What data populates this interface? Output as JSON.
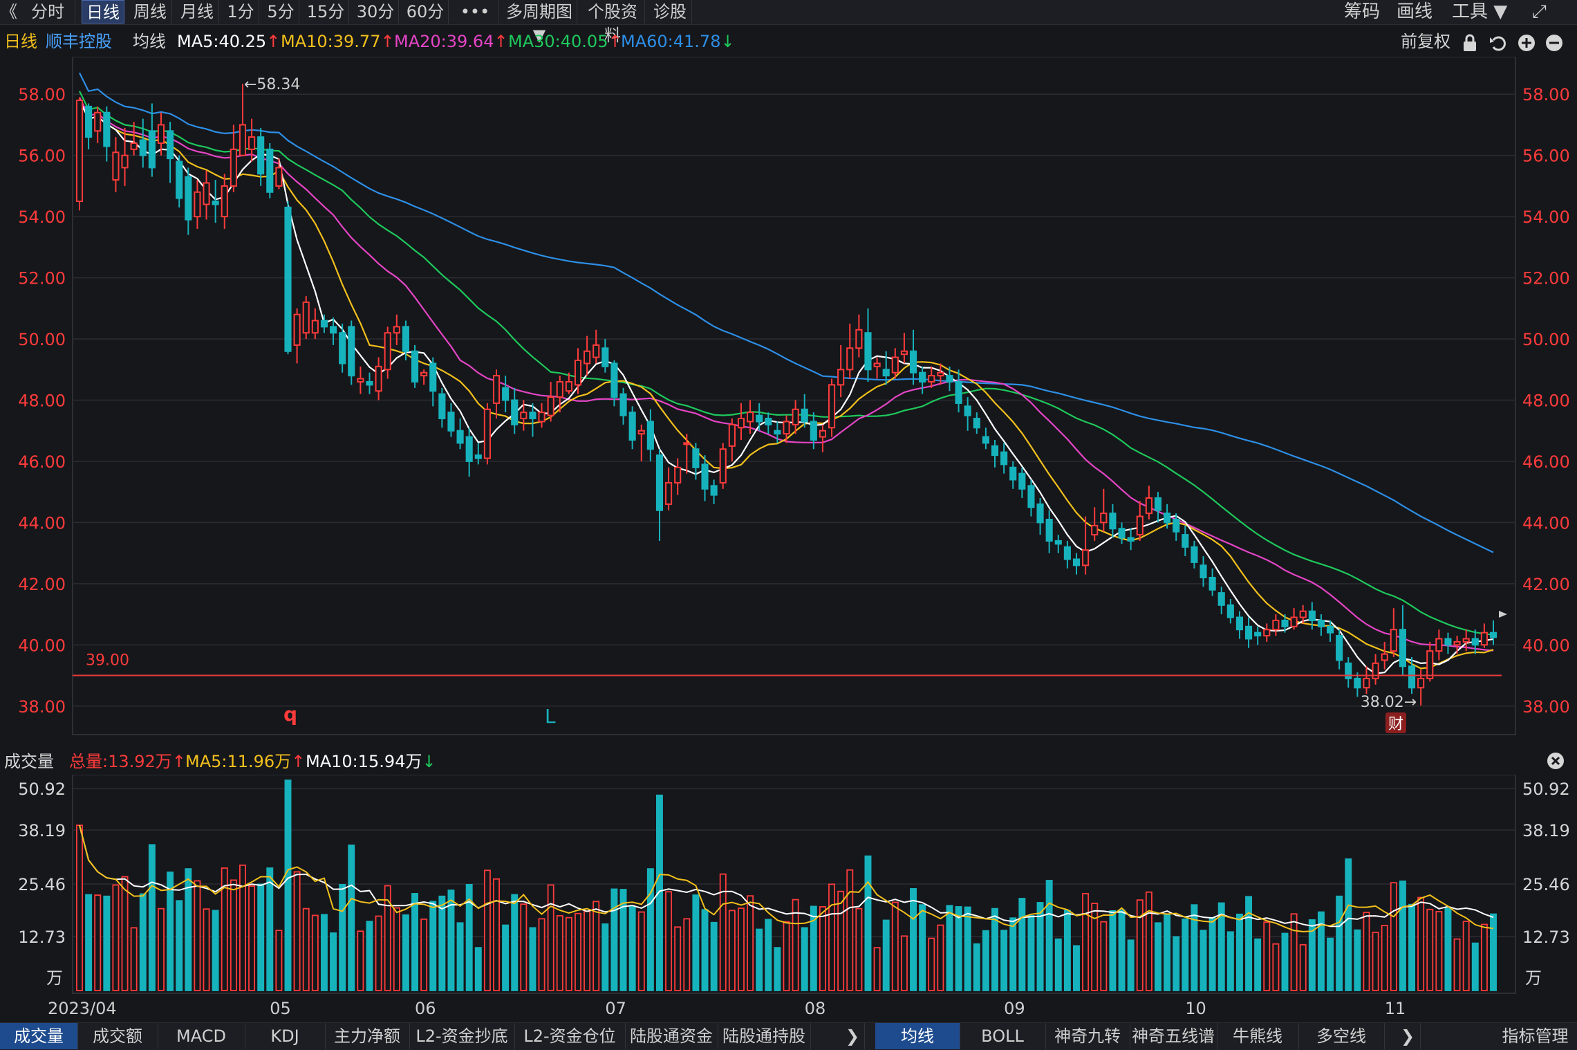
{
  "toolbar": {
    "back_glyph": "《",
    "periods": [
      "分时",
      "日线",
      "周线",
      "月线",
      "1分",
      "5分",
      "15分",
      "30分",
      "60分",
      "•••",
      "多周期图 ▼",
      "个股资料",
      "诊股"
    ],
    "active_period": "日线",
    "right_items": [
      "筹码",
      "画线",
      "工具 ▼",
      "⤢"
    ]
  },
  "ma_bar": {
    "period": "日线",
    "stock_name": "顺丰控股",
    "indicator": "均线",
    "ma5": "MA5:40.25",
    "ma10": "MA10:39.77",
    "ma20": "MA20:39.64",
    "ma30": "MA30:40.05",
    "ma60": "MA60:41.78",
    "ma5_arrow": "↑",
    "ma10_arrow": "↑",
    "ma20_arrow": "↑",
    "ma30_arrow": "↑",
    "ma60_arrow": "↓",
    "adjust": "前复权",
    "icons": [
      "lock-icon",
      "undo-icon",
      "zoom-in-icon",
      "zoom-out-icon"
    ]
  },
  "colors": {
    "up": "#ff3b3b",
    "down": "#16b3bd",
    "ma5": "#ffffff",
    "ma10": "#f2c01c",
    "ma20": "#e545c6",
    "ma30": "#1ec95c",
    "ma60": "#2d8fe6",
    "ref_line": "#e83a3a"
  },
  "price_axis": {
    "labels": [
      "58.00",
      "56.00",
      "54.00",
      "52.00",
      "50.00",
      "48.00",
      "46.00",
      "44.00",
      "42.00",
      "40.00",
      "38.00"
    ]
  },
  "volume_axis": {
    "labels": [
      "50.92",
      "38.19",
      "25.46",
      "12.73",
      "万"
    ]
  },
  "x_axis": {
    "labels": [
      "2023/04",
      "05",
      "06",
      "07",
      "08",
      "09",
      "10",
      "11"
    ]
  },
  "annotations": {
    "high_label": "←58.34",
    "low_label": "38.02→",
    "ref_value": "39.00",
    "marker_q": "q",
    "marker_l": "L",
    "event_badge": "财"
  },
  "volume_bar": {
    "title": "成交量",
    "total": "总量:13.92万",
    "total_arrow": "↑",
    "ma5": "MA5:11.96万",
    "ma5_arrow": "↑",
    "ma10": "MA10:15.94万",
    "ma10_arrow": "↓",
    "close_glyph": "✕"
  },
  "bottom_tabs": {
    "left": [
      "成交量",
      "成交额",
      "MACD",
      "KDJ",
      "主力净额",
      "L2-资金抄底",
      "L2-资金仓位",
      "陆股通资金",
      "陆股通持股"
    ],
    "left_active": "成交量",
    "arrow": "❯",
    "right": [
      "均线",
      "BOLL",
      "神奇九转",
      "神奇五线谱",
      "牛熊线",
      "多空线"
    ],
    "right_active": "均线",
    "arrow2": "❯",
    "last": "指标管理"
  },
  "chart_data": {
    "type": "candlestick",
    "ylim": [
      37.0,
      59.0
    ],
    "ref_line": 39.0,
    "points": [
      [
        "2023/04",
        54.5,
        57.8,
        57.9,
        54.2
      ],
      [
        null,
        57.6,
        56.6,
        57.7,
        56.2
      ],
      [
        null,
        56.8,
        57.4,
        57.6,
        56.4
      ],
      [
        null,
        57.4,
        56.3,
        57.6,
        55.8
      ],
      [
        null,
        55.2,
        56.1,
        56.6,
        54.8
      ],
      [
        null,
        55.6,
        56.0,
        56.9,
        55.0
      ],
      [
        null,
        56.2,
        56.4,
        57.1,
        56.0
      ],
      [
        null,
        56.5,
        56.0,
        57.2,
        55.6
      ],
      [
        null,
        56.8,
        55.6,
        57.7,
        55.3
      ],
      [
        null,
        56.4,
        57.0,
        57.4,
        56.0
      ],
      [
        null,
        56.8,
        55.9,
        57.1,
        55.1
      ],
      [
        null,
        55.8,
        54.6,
        56.0,
        54.3
      ],
      [
        null,
        55.3,
        53.9,
        55.6,
        53.4
      ],
      [
        null,
        54.0,
        54.8,
        55.2,
        53.6
      ],
      [
        null,
        54.4,
        55.1,
        55.5,
        53.9
      ],
      [
        null,
        54.5,
        54.4,
        55.2,
        53.8
      ],
      [
        null,
        54.0,
        55.0,
        55.4,
        53.6
      ],
      [
        null,
        55.0,
        56.2,
        57.0,
        54.8
      ],
      [
        null,
        56.0,
        57.0,
        58.34,
        56.0
      ],
      [
        null,
        56.2,
        56.6,
        57.2,
        55.8
      ],
      [
        null,
        56.6,
        55.4,
        56.9,
        55.0
      ],
      [
        "05",
        56.2,
        54.8,
        56.4,
        54.6
      ],
      [
        null,
        55.0,
        55.6,
        55.9,
        54.9
      ],
      [
        null,
        54.3,
        49.6,
        54.5,
        49.5
      ],
      [
        null,
        49.8,
        50.8,
        51.0,
        49.2
      ],
      [
        null,
        50.2,
        51.2,
        51.4,
        50.0
      ],
      [
        null,
        50.2,
        50.6,
        51.0,
        50.0
      ],
      [
        null,
        50.6,
        50.4,
        50.8,
        50.2
      ],
      [
        null,
        50.4,
        50.2,
        50.7,
        49.8
      ],
      [
        null,
        50.2,
        49.2,
        50.5,
        48.9
      ],
      [
        null,
        50.4,
        48.8,
        50.6,
        48.5
      ],
      [
        null,
        48.6,
        48.7,
        49.1,
        48.2
      ],
      [
        null,
        48.6,
        48.5,
        48.9,
        48.2
      ],
      [
        null,
        48.3,
        49.1,
        49.4,
        48.0
      ],
      [
        null,
        49.0,
        50.2,
        50.4,
        48.7
      ],
      [
        null,
        50.2,
        50.4,
        50.8,
        49.8
      ],
      [
        null,
        50.4,
        49.6,
        50.6,
        49.3
      ],
      [
        "06",
        49.6,
        48.6,
        49.8,
        48.4
      ],
      [
        null,
        48.8,
        48.9,
        49.0,
        48.5
      ],
      [
        null,
        49.2,
        48.3,
        49.4,
        47.8
      ],
      [
        null,
        48.2,
        47.4,
        48.4,
        47.1
      ],
      [
        null,
        47.6,
        47.0,
        47.9,
        46.8
      ],
      [
        null,
        47.0,
        46.6,
        47.4,
        46.4
      ],
      [
        null,
        46.8,
        46.0,
        47.1,
        45.5
      ],
      [
        null,
        46.2,
        46.1,
        46.6,
        45.9
      ],
      [
        null,
        46.1,
        47.7,
        47.9,
        45.9
      ],
      [
        null,
        47.9,
        48.8,
        49.0,
        47.4
      ],
      [
        null,
        48.4,
        48.0,
        48.8,
        47.6
      ],
      [
        null,
        48.0,
        47.2,
        48.4,
        46.9
      ],
      [
        null,
        47.4,
        47.6,
        48.0,
        47.0
      ],
      [
        null,
        47.6,
        47.4,
        47.9,
        46.8
      ],
      [
        null,
        47.3,
        47.6,
        47.9,
        47.1
      ],
      [
        null,
        47.5,
        48.1,
        48.6,
        47.3
      ],
      [
        null,
        48.1,
        48.6,
        48.8,
        47.6
      ],
      [
        null,
        48.3,
        48.6,
        48.9,
        48.2
      ],
      [
        null,
        48.5,
        49.3,
        49.7,
        48.2
      ],
      [
        null,
        49.2,
        49.6,
        50.1,
        48.8
      ],
      [
        null,
        49.4,
        49.8,
        50.3,
        49.2
      ],
      [
        "07",
        49.7,
        49.1,
        50.0,
        48.9
      ],
      [
        null,
        49.2,
        48.1,
        49.3,
        47.8
      ],
      [
        null,
        48.2,
        47.5,
        48.4,
        47.2
      ],
      [
        null,
        47.6,
        46.7,
        47.8,
        46.4
      ],
      [
        null,
        46.9,
        47.0,
        47.2,
        46.0
      ],
      [
        null,
        47.3,
        46.4,
        47.7,
        46.0
      ],
      [
        null,
        46.2,
        44.4,
        46.4,
        43.4
      ],
      [
        null,
        44.6,
        45.3,
        45.8,
        44.4
      ],
      [
        null,
        45.3,
        45.8,
        46.1,
        44.9
      ],
      [
        null,
        46.6,
        46.6,
        46.9,
        45.6
      ],
      [
        null,
        46.4,
        45.8,
        46.6,
        45.4
      ],
      [
        null,
        45.9,
        45.1,
        46.2,
        44.7
      ],
      [
        null,
        45.2,
        44.9,
        45.4,
        44.6
      ],
      [
        null,
        45.3,
        46.4,
        46.6,
        45.1
      ],
      [
        null,
        46.5,
        47.2,
        47.4,
        46.0
      ],
      [
        null,
        47.1,
        47.4,
        47.9,
        46.7
      ],
      [
        null,
        47.3,
        47.6,
        48.0,
        46.9
      ],
      [
        null,
        47.5,
        47.3,
        47.9,
        47.0
      ],
      [
        null,
        47.4,
        47.2,
        47.6,
        46.9
      ],
      [
        null,
        47.0,
        46.9,
        47.3,
        46.6
      ],
      [
        null,
        46.9,
        47.3,
        47.5,
        46.6
      ],
      [
        null,
        47.2,
        47.7,
        48.0,
        46.9
      ],
      [
        "08",
        47.7,
        47.3,
        48.2,
        47.1
      ],
      [
        null,
        47.3,
        46.7,
        47.6,
        46.4
      ],
      [
        null,
        46.8,
        47.0,
        47.2,
        46.3
      ],
      [
        null,
        47.1,
        48.5,
        48.7,
        46.8
      ],
      [
        null,
        48.5,
        49.0,
        49.8,
        48.1
      ],
      [
        null,
        49.0,
        49.7,
        50.5,
        48.7
      ],
      [
        null,
        49.7,
        50.3,
        50.8,
        49.4
      ],
      [
        null,
        50.2,
        49.0,
        51.0,
        48.6
      ],
      [
        null,
        49.1,
        49.2,
        49.4,
        48.7
      ],
      [
        null,
        49.0,
        48.8,
        49.6,
        48.5
      ],
      [
        null,
        48.9,
        49.4,
        49.7,
        48.7
      ],
      [
        null,
        49.5,
        49.6,
        50.2,
        49.2
      ],
      [
        null,
        49.6,
        48.9,
        50.3,
        48.5
      ],
      [
        null,
        48.9,
        48.6,
        49.1,
        48.2
      ],
      [
        null,
        48.6,
        48.8,
        49.1,
        48.4
      ],
      [
        null,
        48.8,
        48.9,
        49.2,
        48.5
      ],
      [
        null,
        48.8,
        48.6,
        49.1,
        48.3
      ],
      [
        null,
        48.6,
        47.9,
        49.0,
        47.6
      ],
      [
        null,
        47.8,
        47.5,
        48.1,
        47.0
      ],
      [
        null,
        47.4,
        47.1,
        47.6,
        46.9
      ],
      [
        null,
        46.8,
        46.6,
        47.1,
        46.4
      ],
      [
        null,
        46.5,
        46.2,
        46.7,
        45.8
      ],
      [
        "09",
        46.3,
        45.9,
        46.6,
        45.6
      ],
      [
        null,
        45.8,
        45.4,
        46.0,
        45.1
      ],
      [
        null,
        45.6,
        45.1,
        45.8,
        44.8
      ],
      [
        null,
        45.2,
        44.5,
        45.4,
        44.2
      ],
      [
        null,
        44.6,
        44.0,
        44.8,
        43.6
      ],
      [
        null,
        44.1,
        43.4,
        44.4,
        43.0
      ],
      [
        null,
        43.4,
        43.3,
        43.6,
        43.0
      ],
      [
        null,
        43.2,
        42.8,
        43.4,
        42.5
      ],
      [
        null,
        42.8,
        42.6,
        43.0,
        42.3
      ],
      [
        null,
        42.6,
        43.1,
        44.2,
        42.3
      ],
      [
        null,
        43.6,
        43.9,
        44.5,
        43.4
      ],
      [
        null,
        44.0,
        44.3,
        45.1,
        43.7
      ],
      [
        null,
        44.3,
        43.8,
        44.6,
        43.5
      ],
      [
        null,
        43.8,
        43.5,
        44.0,
        43.3
      ],
      [
        null,
        43.5,
        43.4,
        43.8,
        43.1
      ],
      [
        null,
        43.6,
        44.2,
        44.7,
        43.4
      ],
      [
        null,
        44.3,
        44.8,
        45.2,
        44.1
      ],
      [
        null,
        44.8,
        44.4,
        45.0,
        44.0
      ],
      [
        null,
        44.3,
        44.0,
        44.6,
        43.8
      ],
      [
        null,
        44.1,
        43.7,
        44.3,
        43.4
      ],
      [
        "10",
        43.6,
        43.2,
        43.9,
        42.9
      ],
      [
        null,
        43.2,
        42.7,
        43.4,
        42.5
      ],
      [
        null,
        42.6,
        42.2,
        42.9,
        41.9
      ],
      [
        null,
        42.2,
        41.8,
        42.5,
        41.6
      ],
      [
        null,
        41.7,
        41.3,
        41.9,
        41.0
      ],
      [
        null,
        41.3,
        40.9,
        41.5,
        40.7
      ],
      [
        null,
        40.9,
        40.5,
        41.1,
        40.2
      ],
      [
        null,
        40.6,
        40.2,
        40.9,
        39.9
      ],
      [
        null,
        40.4,
        40.3,
        40.6,
        40.0
      ],
      [
        null,
        40.3,
        40.5,
        40.7,
        40.1
      ],
      [
        null,
        40.5,
        40.8,
        41.0,
        40.3
      ],
      [
        null,
        40.8,
        40.6,
        41.0,
        40.4
      ],
      [
        null,
        40.6,
        40.9,
        41.2,
        40.5
      ],
      [
        null,
        40.9,
        41.1,
        41.3,
        40.7
      ],
      [
        null,
        41.1,
        40.8,
        41.4,
        40.5
      ],
      [
        null,
        40.8,
        40.6,
        41.0,
        40.3
      ],
      [
        null,
        40.6,
        40.4,
        40.8,
        40.1
      ],
      [
        null,
        40.3,
        39.5,
        40.5,
        39.2
      ],
      [
        null,
        39.4,
        38.9,
        39.6,
        38.6
      ],
      [
        null,
        38.9,
        38.6,
        39.1,
        38.3
      ],
      [
        null,
        38.6,
        38.9,
        39.3,
        38.4
      ],
      [
        null,
        38.9,
        39.4,
        39.7,
        38.7
      ],
      [
        "11",
        39.5,
        39.7,
        40.1,
        39.2
      ],
      [
        null,
        39.8,
        40.5,
        41.2,
        39.6
      ],
      [
        null,
        40.5,
        39.3,
        41.3,
        39.0
      ],
      [
        null,
        39.3,
        38.6,
        39.6,
        38.4
      ],
      [
        null,
        38.6,
        38.9,
        39.2,
        38.02
      ],
      [
        null,
        38.9,
        39.8,
        40.1,
        38.8
      ],
      [
        null,
        39.8,
        40.2,
        40.5,
        39.5
      ],
      [
        null,
        40.2,
        40.0,
        40.4,
        39.7
      ],
      [
        null,
        40.0,
        40.1,
        40.3,
        39.7
      ],
      [
        null,
        40.1,
        40.2,
        40.5,
        39.8
      ],
      [
        null,
        40.2,
        40.0,
        40.5,
        39.7
      ],
      [
        null,
        40.0,
        40.4,
        40.7,
        39.9
      ],
      [
        null,
        40.4,
        40.25,
        40.8,
        40.0
      ]
    ]
  }
}
